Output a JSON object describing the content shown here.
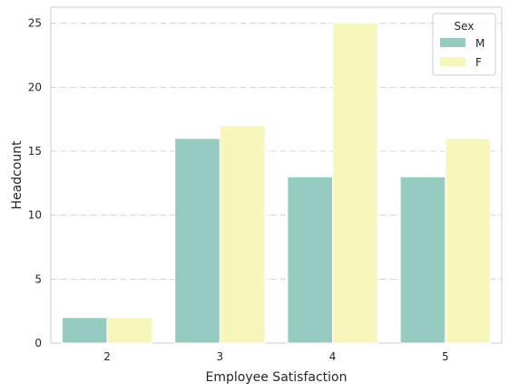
{
  "chart_data": {
    "type": "bar",
    "categories": [
      "2",
      "3",
      "4",
      "5"
    ],
    "series": [
      {
        "name": "M",
        "values": [
          2,
          16,
          13,
          13
        ],
        "color": "#96cbc1"
      },
      {
        "name": "F",
        "values": [
          2,
          17,
          25,
          16
        ],
        "color": "#f8f7bb"
      }
    ],
    "xlabel": "Employee Satisfaction",
    "ylabel": "Headcount",
    "ylim": [
      0,
      26.25
    ],
    "yticks": [
      0,
      5,
      10,
      15,
      20,
      25
    ],
    "grid": true,
    "legend": {
      "title": "Sex",
      "placement": "top-right"
    }
  }
}
